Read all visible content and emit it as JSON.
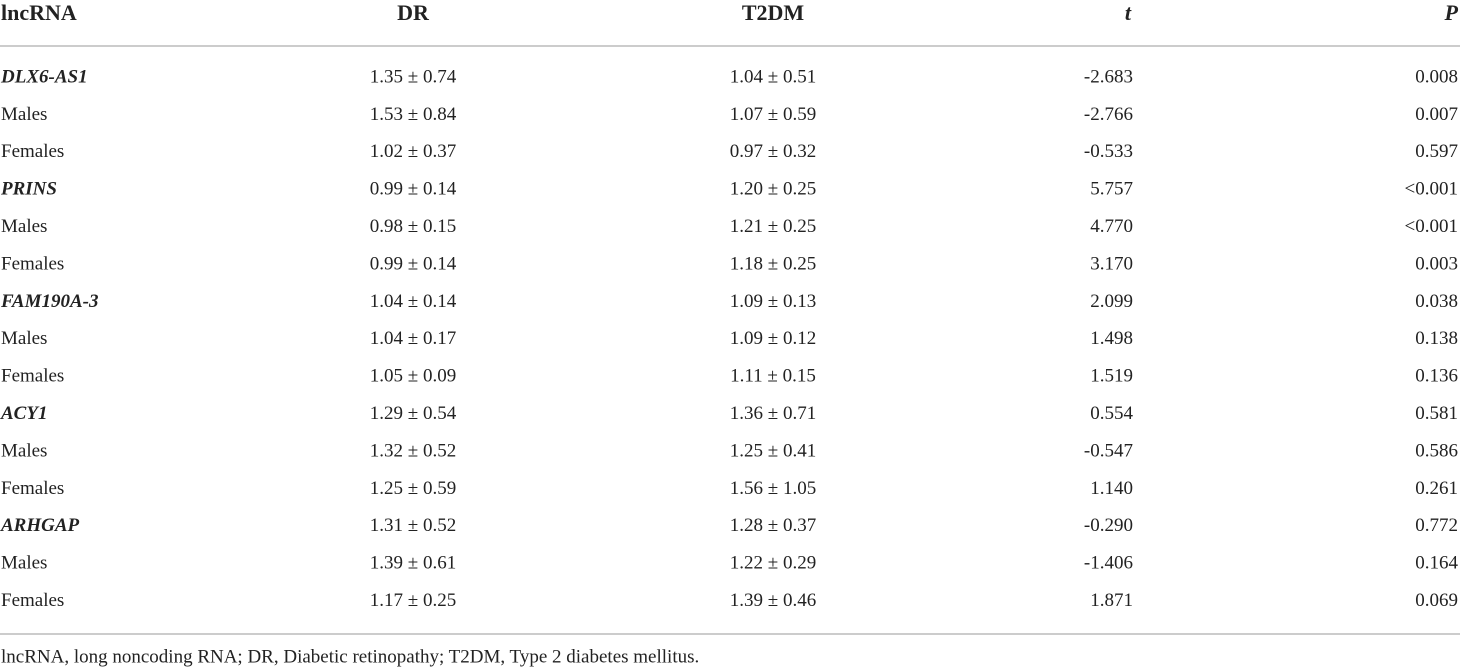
{
  "table": {
    "headers": [
      "lncRNA",
      "DR",
      "T2DM",
      "t",
      "P"
    ],
    "rows": [
      [
        "DLX6-AS1",
        "1.35 ± 0.74",
        "1.04 ± 0.51",
        "-2.683",
        "0.008"
      ],
      [
        "Males",
        "1.53 ± 0.84",
        "1.07 ± 0.59",
        "-2.766",
        "0.007"
      ],
      [
        "Females",
        "1.02 ± 0.37",
        "0.97 ± 0.32",
        "-0.533",
        "0.597"
      ],
      [
        "PRINS",
        "0.99 ± 0.14",
        "1.20 ± 0.25",
        "5.757",
        "<0.001"
      ],
      [
        "Males",
        "0.98 ± 0.15",
        "1.21 ± 0.25",
        "4.770",
        "<0.001"
      ],
      [
        "Females",
        "0.99 ± 0.14",
        "1.18 ± 0.25",
        "3.170",
        "0.003"
      ],
      [
        "FAM190A-3",
        "1.04 ± 0.14",
        "1.09 ± 0.13",
        "2.099",
        "0.038"
      ],
      [
        "Males",
        "1.04 ± 0.17",
        "1.09 ± 0.12",
        "1.498",
        "0.138"
      ],
      [
        "Females",
        "1.05 ± 0.09",
        "1.11 ± 0.15",
        "1.519",
        "0.136"
      ],
      [
        "ACY1",
        "1.29 ± 0.54",
        "1.36 ± 0.71",
        "0.554",
        "0.581"
      ],
      [
        "Males",
        "1.32 ± 0.52",
        "1.25 ± 0.41",
        "-0.547",
        "0.586"
      ],
      [
        "Females",
        "1.25 ± 0.59",
        "1.56 ± 1.05",
        "1.140",
        "0.261"
      ],
      [
        "ARHGAP",
        "1.31 ± 0.52",
        "1.28 ± 0.37",
        "-0.290",
        "0.772"
      ],
      [
        "Males",
        "1.39 ± 0.61",
        "1.22 ± 0.29",
        "-1.406",
        "0.164"
      ],
      [
        "Females",
        "1.17 ± 0.25",
        "1.39 ± 0.46",
        "1.871",
        "0.069"
      ]
    ],
    "footnote": "lncRNA, long noncoding RNA; DR, Diabetic retinopathy; T2DM, Type 2 diabetes mellitus."
  }
}
